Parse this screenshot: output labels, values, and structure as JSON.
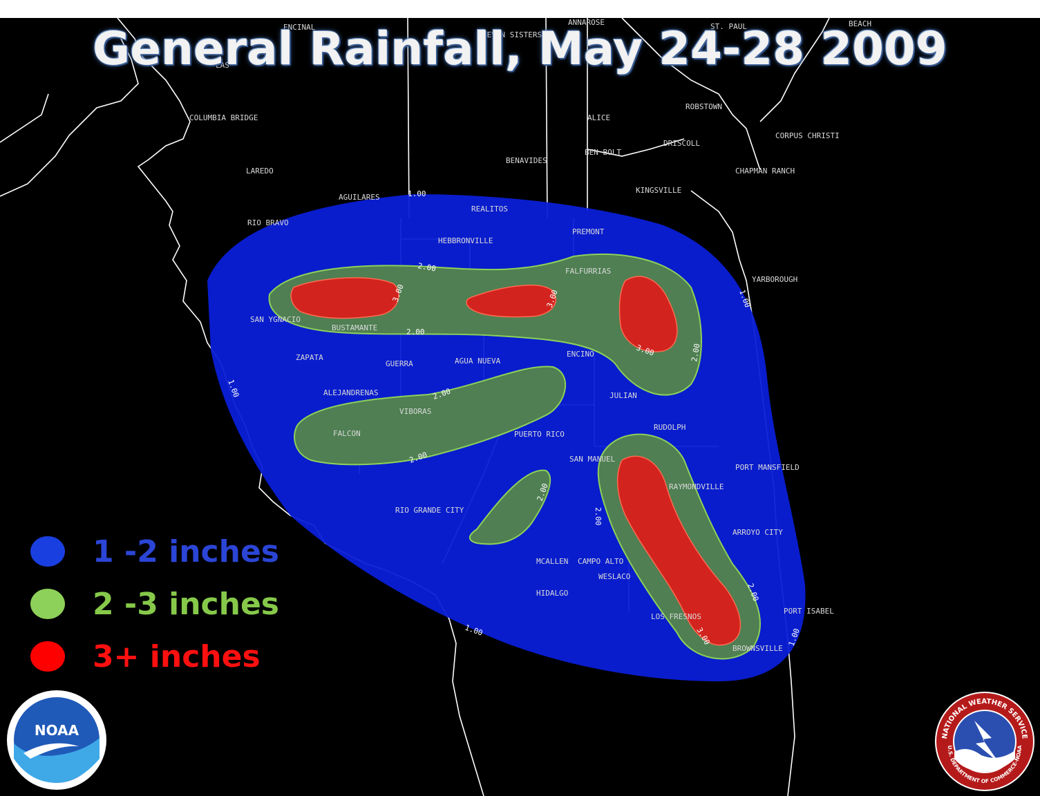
{
  "title": "General Rainfall, May 24-28 2009",
  "legend": [
    {
      "label": "1 -2 inches",
      "color": "#1a3fe0",
      "text_color": "#2b45d6"
    },
    {
      "label": "2 -3 inches",
      "color": "#8ed15a",
      "text_color": "#86c94a"
    },
    {
      "label": "3+ inches",
      "color": "#ff0000",
      "text_color": "#ff1010"
    }
  ],
  "colors": {
    "band_1_2": "#0a1fd8",
    "band_2_3": "#4f7f52",
    "band_3_plus": "#d2231e",
    "background": "#000000",
    "boundaries": "#ffffff"
  },
  "places": [
    "ENCINAL",
    "SEVEN SISTERS",
    "ANNAROSE",
    "ST. PAUL",
    "BEACH",
    "LAS",
    "COLUMBIA BRIDGE",
    "ALICE",
    "ROBSTOWN",
    "DRISCOLL",
    "CORPUS CHRISTI",
    "LAREDO",
    "BENAVIDES",
    "BEN BOLT",
    "KINGSVILLE",
    "CHAPMAN RANCH",
    "AGUILARES",
    "REALITOS",
    "PREMONT",
    "HEBBRONVILLE",
    "RIO BRAVO",
    "YARBOROUGH",
    "FALFURRIAS",
    "SAN YGNACIO",
    "BUSTAMANTE",
    "ZAPATA",
    "GUERRA",
    "AGUA NUEVA",
    "ENCINO",
    "ALEJANDRENAS",
    "JULIAN",
    "VIBORAS",
    "FALCON",
    "PUERTO RICO",
    "RUDOLPH",
    "SAN MANUEL",
    "PORT MANSFIELD",
    "RIO GRANDE CITY",
    "RAYMONDVILLE",
    "ARROYO CITY",
    "MCALLEN",
    "CAMPO ALTO",
    "WESLACO",
    "HIDALGO",
    "PORT ISABEL",
    "LOS FRESNOS",
    "BROWNSVILLE"
  ],
  "contour_labels": [
    "1.00",
    "2.00",
    "3.00"
  ],
  "logos": {
    "noaa": "NOAA",
    "nws_ring": "NATIONAL WEATHER SERVICE",
    "nws_bottom": "U.S. DEPARTMENT OF COMMERCE-NOAA"
  }
}
